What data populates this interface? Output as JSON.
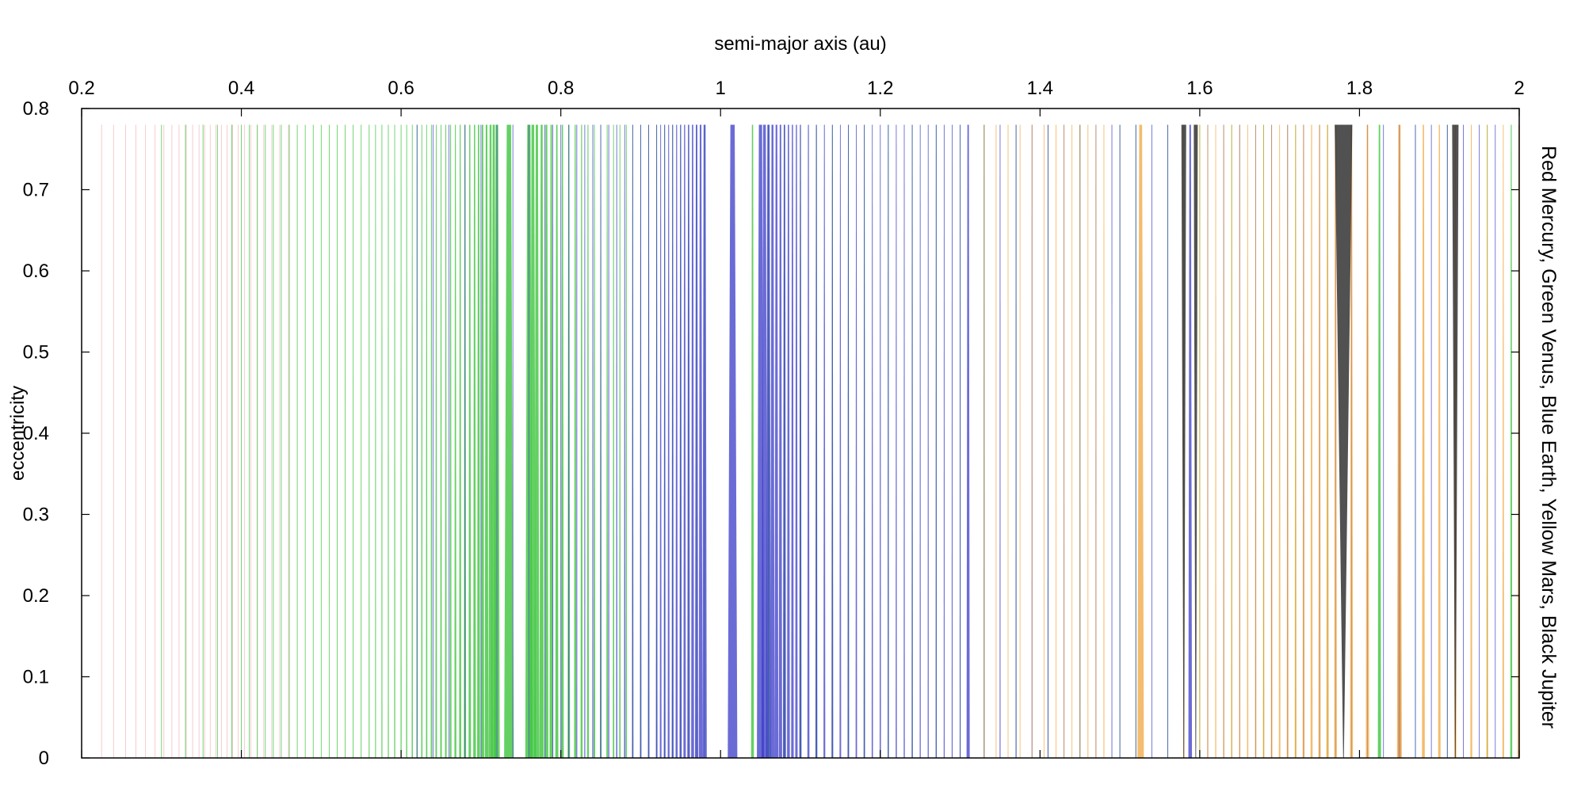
{
  "chart_data": {
    "type": "line",
    "title": "",
    "xlabel": "semi-major axis (au)",
    "ylabel": "eccentricity",
    "side_label": "Red Mercury, Green Venus, Blue Earth, Yellow Mars, Black Jupiter",
    "xlim": [
      0.2,
      2.0
    ],
    "ylim": [
      0,
      0.8
    ],
    "x_axis_position": "top",
    "x_ticks": [
      {
        "value": 0.2,
        "label": "0.2"
      },
      {
        "value": 0.4,
        "label": "0.4"
      },
      {
        "value": 0.6,
        "label": "0.6"
      },
      {
        "value": 0.8,
        "label": "0.8"
      },
      {
        "value": 1.0,
        "label": "1"
      },
      {
        "value": 1.2,
        "label": "1.2"
      },
      {
        "value": 1.4,
        "label": "1.4"
      },
      {
        "value": 1.6,
        "label": "1.6"
      },
      {
        "value": 1.8,
        "label": "1.8"
      },
      {
        "value": 2.0,
        "label": "2"
      }
    ],
    "y_ticks": [
      {
        "value": 0,
        "label": "0"
      },
      {
        "value": 0.1,
        "label": "0.1"
      },
      {
        "value": 0.2,
        "label": "0.2"
      },
      {
        "value": 0.3,
        "label": "0.3"
      },
      {
        "value": 0.4,
        "label": "0.4"
      },
      {
        "value": 0.5,
        "label": "0.5"
      },
      {
        "value": 0.6,
        "label": "0.6"
      },
      {
        "value": 0.7,
        "label": "0.7"
      },
      {
        "value": 0.8,
        "label": "0.8"
      }
    ],
    "grid": false,
    "e_max_plotted": 0.78,
    "series": [
      {
        "name": "Mercury",
        "color": "#ee8080",
        "opacity": 0.45,
        "widths_at_e0": [
          0.0003,
          0.0003,
          0.0003,
          0.0004,
          0.0003,
          0.0003,
          0.0004,
          0.0003,
          0.0004,
          0.0004,
          0.0004,
          0.0005,
          0.0005,
          0.0005,
          0.0006,
          0.0005,
          0.0006,
          0.0006,
          0.0007,
          0.0008,
          0.0008,
          0.0009,
          0.0008,
          0.001,
          0.0008,
          0.0009
        ],
        "resonances_a": [
          0.225,
          0.24,
          0.255,
          0.268,
          0.28,
          0.292,
          0.303,
          0.313,
          0.322,
          0.331,
          0.339,
          0.347,
          0.354,
          0.361,
          0.368,
          0.375,
          0.382,
          0.389,
          0.396,
          0.404,
          0.412,
          0.42,
          0.428,
          0.438,
          0.448,
          0.459
        ]
      },
      {
        "name": "Venus",
        "color": "#3dc43d",
        "opacity": 0.8,
        "resonances_a": [
          0.3,
          0.33,
          0.352,
          0.37,
          0.388,
          0.4,
          0.41,
          0.42,
          0.43,
          0.44,
          0.45,
          0.46,
          0.47,
          0.48,
          0.49,
          0.5,
          0.51,
          0.52,
          0.53,
          0.54,
          0.55,
          0.56,
          0.568,
          0.576,
          0.584,
          0.592,
          0.6,
          0.607,
          0.614,
          0.62,
          0.626,
          0.632,
          0.638,
          0.644,
          0.65,
          0.656,
          0.662,
          0.668,
          0.674,
          0.68,
          0.686,
          0.692,
          0.697,
          0.702,
          0.707,
          0.712,
          0.716,
          0.72,
          0.735,
          0.76,
          0.765,
          0.77,
          0.776,
          0.782,
          0.788,
          0.795,
          0.802,
          0.81,
          0.818,
          0.826,
          0.834,
          0.842,
          0.85,
          0.858,
          0.866,
          0.874,
          0.882,
          0.89,
          0.9,
          0.91,
          0.92,
          0.93,
          0.94,
          0.95,
          0.96,
          0.97,
          0.98,
          1.04,
          1.06,
          1.08,
          1.1,
          1.12,
          1.14,
          1.16,
          1.18,
          1.21,
          1.24,
          1.27,
          1.3,
          1.33,
          1.37,
          1.41,
          1.45,
          1.5,
          1.52,
          1.56,
          1.6,
          1.64,
          1.68,
          1.72,
          1.76,
          1.825,
          1.87,
          1.91,
          1.96,
          1.99
        ],
        "widths_at_e0": [
          0.0003,
          0.0004,
          0.0004,
          0.0004,
          0.0005,
          0.0005,
          0.0005,
          0.0005,
          0.0006,
          0.0006,
          0.0006,
          0.0007,
          0.0007,
          0.0007,
          0.0008,
          0.0008,
          0.0009,
          0.0009,
          0.0009,
          0.001,
          0.001,
          0.0011,
          0.0011,
          0.0012,
          0.0012,
          0.0013,
          0.0013,
          0.0014,
          0.0015,
          0.0015,
          0.0016,
          0.0017,
          0.0018,
          0.0019,
          0.002,
          0.0021,
          0.0022,
          0.0024,
          0.0026,
          0.0028,
          0.003,
          0.0033,
          0.0036,
          0.004,
          0.0045,
          0.0052,
          0.006,
          0.007,
          0.012,
          0.009,
          0.0075,
          0.0063,
          0.0054,
          0.0047,
          0.0042,
          0.0037,
          0.0033,
          0.003,
          0.0027,
          0.0025,
          0.0023,
          0.0021,
          0.002,
          0.0019,
          0.0018,
          0.0017,
          0.0016,
          0.0015,
          0.0014,
          0.0013,
          0.0013,
          0.0012,
          0.0012,
          0.0011,
          0.0011,
          0.001,
          0.001,
          0.0035,
          0.0028,
          0.0024,
          0.002,
          0.0018,
          0.0016,
          0.0015,
          0.0014,
          0.0013,
          0.0012,
          0.0011,
          0.001,
          0.001,
          0.0009,
          0.0009,
          0.0008,
          0.0009,
          0.0008,
          0.0008,
          0.0007,
          0.0007,
          0.0007,
          0.0007,
          0.0006,
          0.004,
          0.0006,
          0.0006,
          0.0006,
          0.0025
        ]
      },
      {
        "name": "Earth",
        "color": "#3a3ac8",
        "opacity": 0.75,
        "resonances_a": [
          0.62,
          0.64,
          0.66,
          0.68,
          0.7,
          0.72,
          0.74,
          0.76,
          0.78,
          0.79,
          0.8,
          0.81,
          0.82,
          0.83,
          0.84,
          0.85,
          0.86,
          0.87,
          0.88,
          0.89,
          0.9,
          0.91,
          0.92,
          0.925,
          0.93,
          0.935,
          0.94,
          0.945,
          0.95,
          0.955,
          0.96,
          0.965,
          0.97,
          0.975,
          0.98,
          1.015,
          1.05,
          1.055,
          1.06,
          1.065,
          1.07,
          1.075,
          1.08,
          1.085,
          1.09,
          1.095,
          1.1,
          1.11,
          1.12,
          1.13,
          1.14,
          1.15,
          1.16,
          1.17,
          1.18,
          1.19,
          1.2,
          1.21,
          1.22,
          1.23,
          1.24,
          1.25,
          1.26,
          1.27,
          1.28,
          1.29,
          1.3,
          1.31,
          1.33,
          1.35,
          1.37,
          1.39,
          1.41,
          1.43,
          1.45,
          1.47,
          1.49,
          1.5,
          1.52,
          1.54,
          1.56,
          1.588,
          1.61,
          1.63,
          1.65,
          1.67,
          1.69,
          1.71,
          1.73,
          1.75,
          1.77,
          1.79,
          1.81,
          1.83,
          1.85,
          1.87,
          1.89,
          1.91,
          1.93,
          1.95,
          1.97
        ],
        "widths_at_e0": [
          0.0006,
          0.0006,
          0.0007,
          0.0007,
          0.0008,
          0.0008,
          0.0009,
          0.0009,
          0.001,
          0.001,
          0.0011,
          0.0011,
          0.0012,
          0.0012,
          0.0013,
          0.0013,
          0.0014,
          0.0015,
          0.0016,
          0.0017,
          0.0018,
          0.0019,
          0.002,
          0.0021,
          0.0022,
          0.0023,
          0.0024,
          0.0026,
          0.0028,
          0.003,
          0.0033,
          0.0036,
          0.004,
          0.0046,
          0.0055,
          0.012,
          0.009,
          0.0075,
          0.0063,
          0.0054,
          0.0047,
          0.0042,
          0.0038,
          0.0035,
          0.0032,
          0.003,
          0.0028,
          0.0026,
          0.0024,
          0.0022,
          0.0021,
          0.002,
          0.0019,
          0.0018,
          0.0017,
          0.0016,
          0.0016,
          0.0015,
          0.0015,
          0.0014,
          0.0014,
          0.0013,
          0.0013,
          0.0013,
          0.0012,
          0.0012,
          0.0012,
          0.004,
          0.0011,
          0.0011,
          0.0011,
          0.001,
          0.001,
          0.001,
          0.001,
          0.0009,
          0.0009,
          0.0009,
          0.0009,
          0.0009,
          0.0008,
          0.0045,
          0.0008,
          0.0008,
          0.0008,
          0.0008,
          0.0008,
          0.0007,
          0.0007,
          0.0007,
          0.0007,
          0.0007,
          0.0007,
          0.0007,
          0.003,
          0.0007,
          0.0006,
          0.0006,
          0.0006,
          0.0006,
          0.0006
        ]
      },
      {
        "name": "Mars",
        "color": "#f0a030",
        "opacity": 0.7,
        "resonances_a": [
          1.33,
          1.345,
          1.36,
          1.375,
          1.39,
          1.405,
          1.42,
          1.43,
          1.44,
          1.45,
          1.46,
          1.47,
          1.48,
          1.526,
          1.58,
          1.6,
          1.61,
          1.62,
          1.63,
          1.64,
          1.65,
          1.66,
          1.67,
          1.68,
          1.69,
          1.7,
          1.71,
          1.72,
          1.73,
          1.74,
          1.75,
          1.76,
          1.77,
          1.79,
          1.81,
          1.85,
          1.88,
          1.9,
          1.92,
          1.94,
          1.96,
          1.98,
          2.0
        ],
        "widths_at_e0": [
          0.0006,
          0.0006,
          0.0007,
          0.0007,
          0.0007,
          0.0008,
          0.0008,
          0.0008,
          0.0009,
          0.0009,
          0.001,
          0.001,
          0.0011,
          0.008,
          0.0015,
          0.0012,
          0.0013,
          0.0013,
          0.0014,
          0.0015,
          0.0015,
          0.0016,
          0.0017,
          0.0018,
          0.0019,
          0.002,
          0.0021,
          0.0022,
          0.0024,
          0.0026,
          0.0028,
          0.003,
          0.0033,
          0.0036,
          0.004,
          0.006,
          0.0035,
          0.003,
          0.0026,
          0.0023,
          0.0021,
          0.002,
          0.0045
        ]
      },
      {
        "name": "Jupiter",
        "color": "#333333",
        "opacity": 0.85,
        "resonances_a": [
          1.58,
          1.595,
          1.78,
          1.92
        ],
        "widths_at_e0": [
          0.0008,
          0.0008,
          0.0008,
          0.0007
        ],
        "widths_at_emax": [
          0.006,
          0.005,
          0.022,
          0.008
        ]
      }
    ]
  }
}
